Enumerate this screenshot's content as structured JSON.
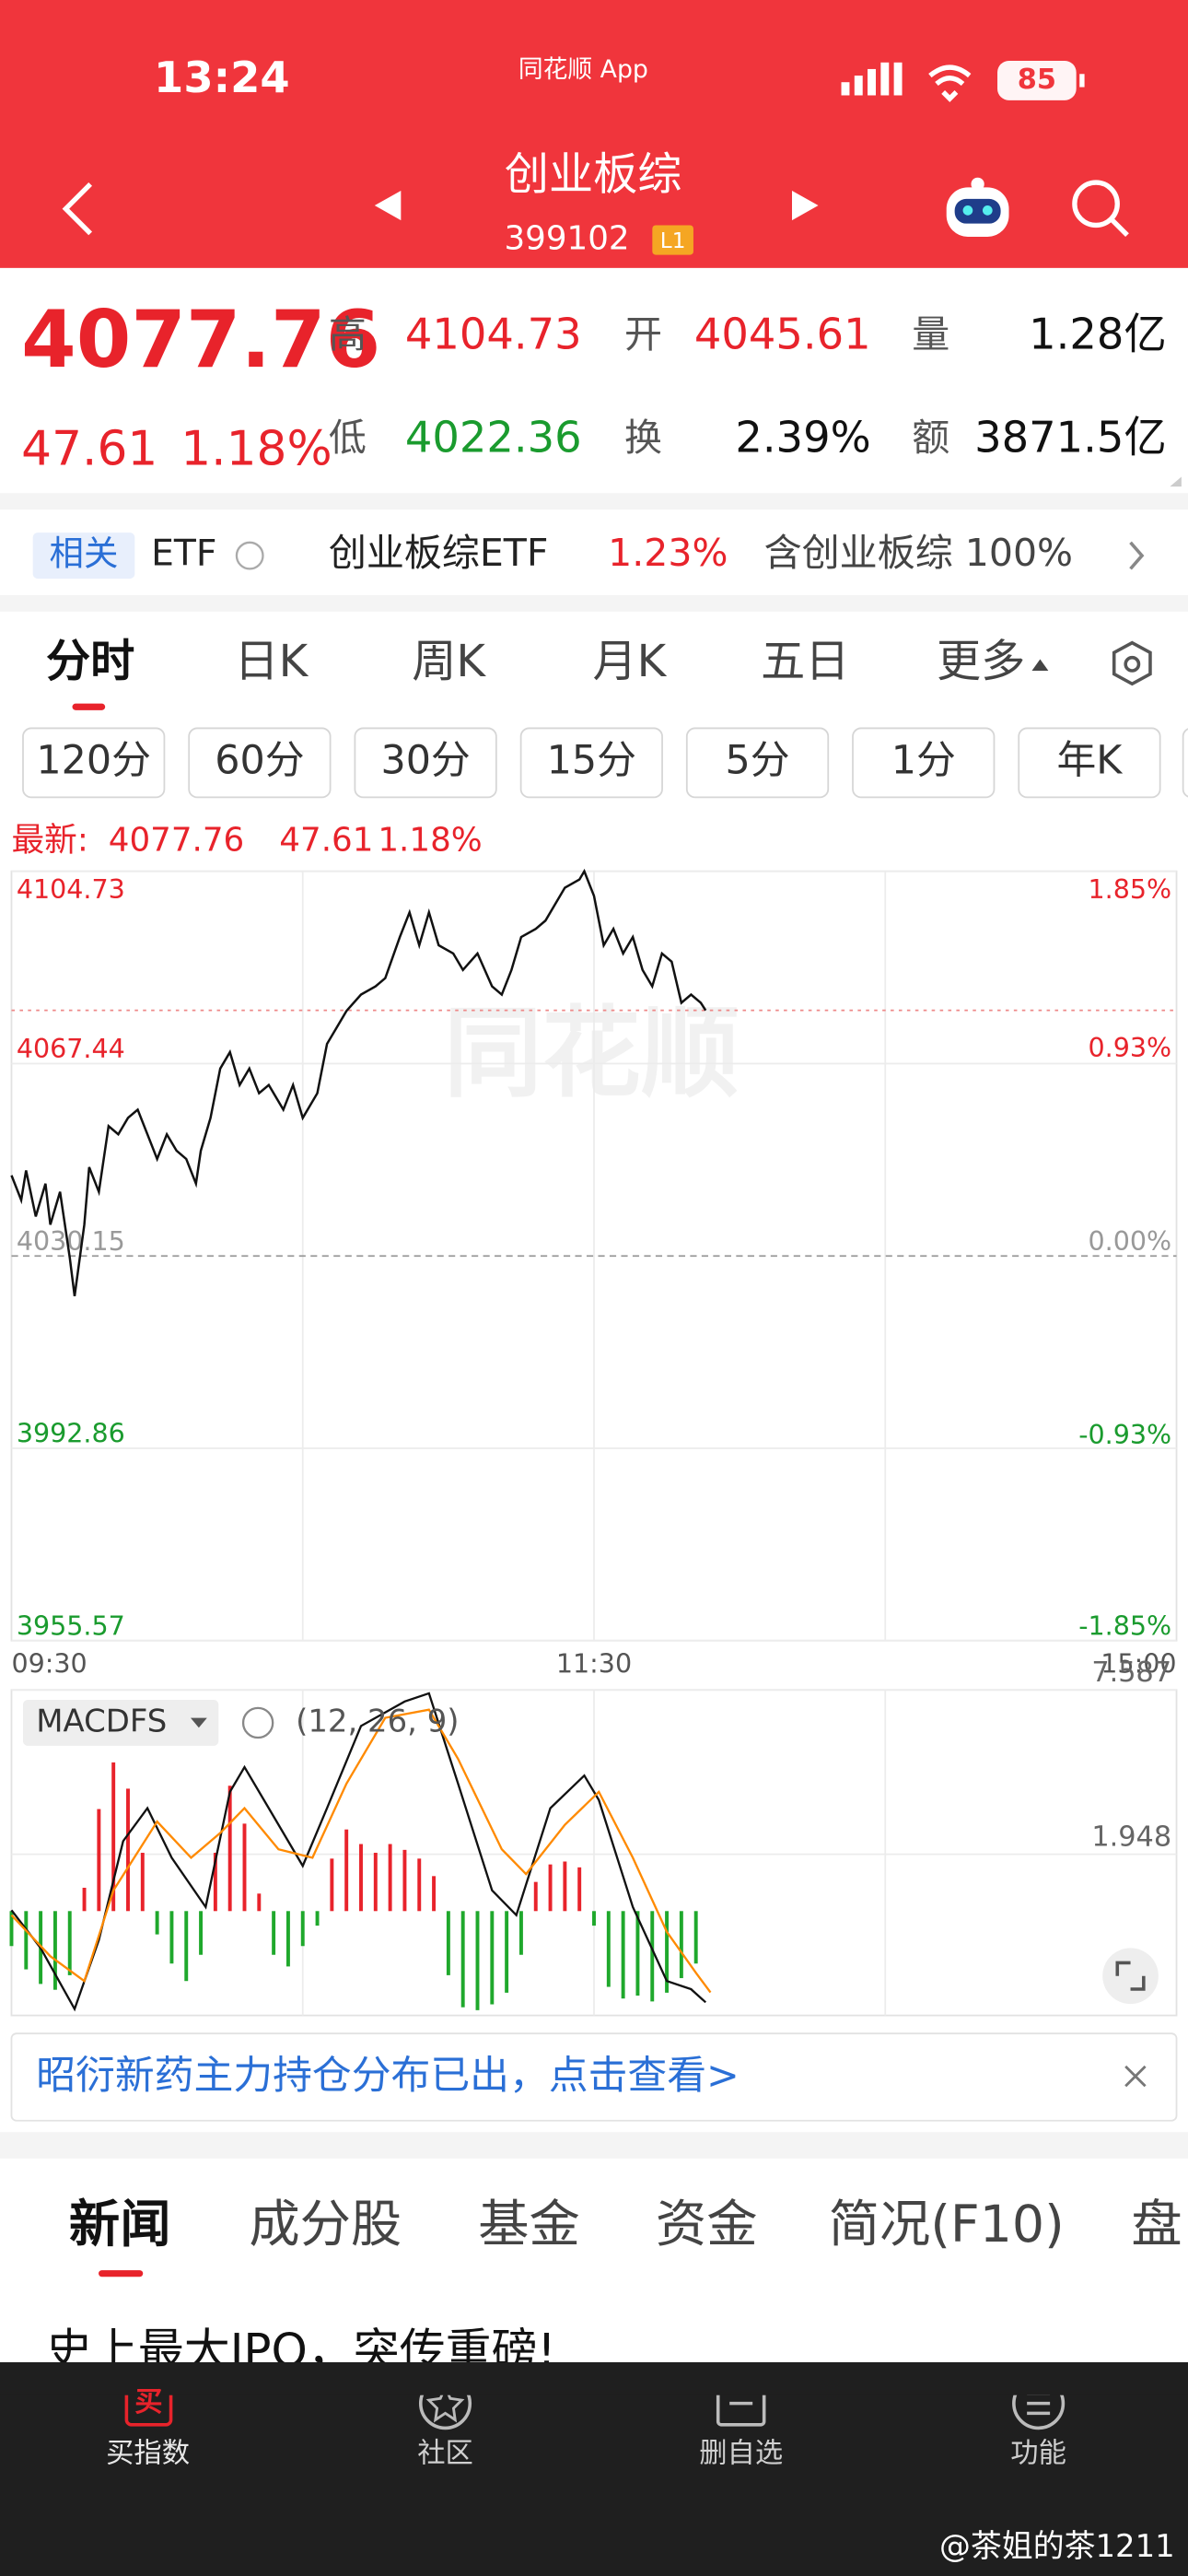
{
  "status_bar": {
    "time": "13:24",
    "app": "同花顺 App",
    "battery": "85"
  },
  "header": {
    "title": "创业板综",
    "code": "399102",
    "level": "L1"
  },
  "quote": {
    "price": "4077.76",
    "change": "47.61",
    "change_pct": "1.18%",
    "stats": [
      {
        "label": "高",
        "value": "4104.73"
      },
      {
        "label": "开",
        "value": "4045.61"
      },
      {
        "label": "量",
        "value": "1.28亿"
      },
      {
        "label": "低",
        "value": "4022.36"
      },
      {
        "label": "换",
        "value": "2.39%"
      },
      {
        "label": "额",
        "value": "3871.5亿"
      }
    ]
  },
  "etf": {
    "tag": "相关",
    "label": "ETF",
    "name": "创业板综ETF",
    "change": "1.23%",
    "holding": "含创业板综 100%"
  },
  "tabs": [
    "分时",
    "日K",
    "周K",
    "月K",
    "五日",
    "更多"
  ],
  "periods": [
    "120分",
    "60分",
    "30分",
    "15分",
    "5分",
    "1分",
    "年K"
  ],
  "chart_data": [
    {
      "type": "line",
      "legend_label": "最新:",
      "legend_price": 4077.76,
      "legend_change": 47.61,
      "legend_change_pct": "1.18%",
      "watermark": "同花顺",
      "x": [
        0,
        2,
        3,
        5,
        7,
        8,
        10,
        12,
        13,
        15,
        16,
        18,
        20,
        22,
        24,
        26,
        28,
        30,
        32,
        34,
        36,
        38,
        39,
        41,
        43,
        45,
        47,
        49,
        51,
        53,
        56,
        58,
        60,
        63,
        65,
        67,
        69,
        72,
        75,
        77,
        80,
        82,
        84,
        86,
        88,
        91,
        93,
        96,
        99,
        101,
        103,
        105,
        108,
        110,
        112,
        114,
        117,
        118,
        120,
        122,
        124,
        126,
        128,
        130,
        132,
        134,
        136,
        138,
        140,
        142,
        143
      ],
      "series": [
        {
          "color": "#111111",
          "values": [
            4045.77,
            4040.99,
            4046.72,
            4037.8,
            4044.17,
            4036.21,
            4042.58,
            4029.83,
            4022.36,
            4036.21,
            4047.36,
            4042.58,
            4055.33,
            4053.73,
            4056.92,
            4058.51,
            4053.73,
            4048.95,
            4053.73,
            4050.55,
            4048.95,
            4044.17,
            4050.55,
            4056.92,
            4066.48,
            4069.67,
            4063.29,
            4066.48,
            4061.7,
            4063.29,
            4058.51,
            4063.29,
            4056.92,
            4061.7,
            4071.26,
            4074.45,
            4077.64,
            4080.82,
            4082.42,
            4084.01,
            4091.98,
            4096.76,
            4090.38,
            4096.76,
            4090.38,
            4088.79,
            4085.6,
            4088.79,
            4082.42,
            4080.82,
            4085.6,
            4091.98,
            4093.57,
            4095.16,
            4098.35,
            4101.54,
            4103.13,
            4104.73,
            4099.95,
            4090.38,
            4093.57,
            4088.79,
            4091.98,
            4085.6,
            4082.42,
            4088.79,
            4087.2,
            4079.23,
            4080.82,
            4079.23,
            4077.76
          ]
        }
      ],
      "xlim": [
        0,
        240
      ],
      "xticks": [
        {
          "value": 0,
          "label": "09:30"
        },
        {
          "value": 120,
          "label": "11:30"
        },
        {
          "value": 240,
          "label": "15:00"
        }
      ],
      "xgrid": [
        60,
        120,
        180
      ],
      "ylim": [
        3955.57,
        4104.73
      ],
      "yticks": [
        4104.73,
        4067.44,
        4030.15,
        3992.86,
        3955.57
      ],
      "y2lim": [
        -1.85,
        1.85
      ],
      "y2ticks": [
        {
          "value": 1.85,
          "label": "1.85%"
        },
        {
          "value": 0.93,
          "label": "0.93%"
        },
        {
          "value": 0,
          "label": "0.00%"
        },
        {
          "value": -0.93,
          "label": "-0.93%"
        },
        {
          "value": -1.85,
          "label": "-1.85%"
        }
      ],
      "grid": true
    },
    {
      "type": "macd",
      "indicator": "MACDFS",
      "params": "(12, 26, 9)",
      "up_color": "#e8232b",
      "down_color": "#1fa82c",
      "x": [
        0,
        3,
        6,
        9,
        12,
        15,
        18,
        21,
        24,
        27,
        30,
        33,
        36,
        39,
        42,
        45,
        48,
        51,
        54,
        57,
        60,
        63,
        66,
        69,
        72,
        75,
        78,
        81,
        84,
        87,
        90,
        93,
        96,
        99,
        102,
        105,
        108,
        111,
        114,
        117,
        120,
        123,
        126,
        129,
        132,
        135,
        138,
        141
      ],
      "histogram": [
        -1.2,
        -2.0,
        -2.5,
        -2.7,
        -2.2,
        0.8,
        3.5,
        5.1,
        4.2,
        2.0,
        -0.8,
        -1.8,
        -2.4,
        -1.5,
        2.0,
        4.3,
        3.0,
        0.6,
        -1.5,
        -1.9,
        -1.2,
        -0.5,
        1.8,
        2.8,
        2.3,
        2.0,
        2.3,
        2.1,
        1.8,
        1.2,
        -2.2,
        -3.3,
        -3.4,
        -3.2,
        -2.8,
        -1.5,
        1.0,
        1.6,
        1.7,
        1.5,
        -0.5,
        -2.6,
        -3.0,
        -2.9,
        -3.1,
        -2.8,
        -2.3,
        -1.8
      ],
      "series": [
        {
          "color": "#111111",
          "x": [
            0,
            6,
            13,
            18,
            23,
            28,
            33,
            40,
            45,
            48,
            53,
            60,
            65,
            72,
            81,
            86,
            92,
            99,
            104,
            111,
            118,
            121,
            128,
            135,
            140,
            143
          ],
          "values": [
            0.03,
            -1.27,
            -3.36,
            -0.99,
            2.4,
            3.53,
            1.83,
            0.14,
            4.09,
            4.94,
            3.53,
            1.55,
            3.53,
            6.35,
            7.19,
            7.47,
            4.37,
            0.71,
            -0.14,
            3.53,
            4.65,
            3.81,
            0.14,
            -2.4,
            -2.68,
            -3.13
          ]
        },
        {
          "color": "#ff8a00",
          "x": [
            0,
            8,
            15,
            21,
            30,
            37,
            43,
            48,
            55,
            62,
            69,
            77,
            86,
            92,
            101,
            106,
            114,
            121,
            128,
            135,
            141,
            144
          ],
          "values": [
            -0.14,
            -1.55,
            -2.4,
            0.71,
            3.07,
            1.83,
            2.68,
            3.53,
            2.12,
            1.83,
            4.37,
            6.63,
            6.91,
            5.22,
            2.12,
            1.27,
            2.96,
            4.09,
            1.83,
            -0.71,
            -2.12,
            -2.79
          ]
        }
      ],
      "xlim": [
        0,
        240
      ],
      "ylim": [
        -3.58,
        7.587
      ],
      "yticks": [
        1.948,
        7.587
      ]
    }
  ],
  "notice": "昭衍新药主力持仓分布已出，点击查看>",
  "news_tabs": [
    "新闻",
    "成分股",
    "基金",
    "资金",
    "简况(F10)",
    "盘"
  ],
  "headline": "史上最大IPO，突传重磅!",
  "buy_icon": "买",
  "nav": [
    "买指数",
    "社区",
    "删自选",
    "功能"
  ],
  "watermark": "@茶姐的茶1211"
}
